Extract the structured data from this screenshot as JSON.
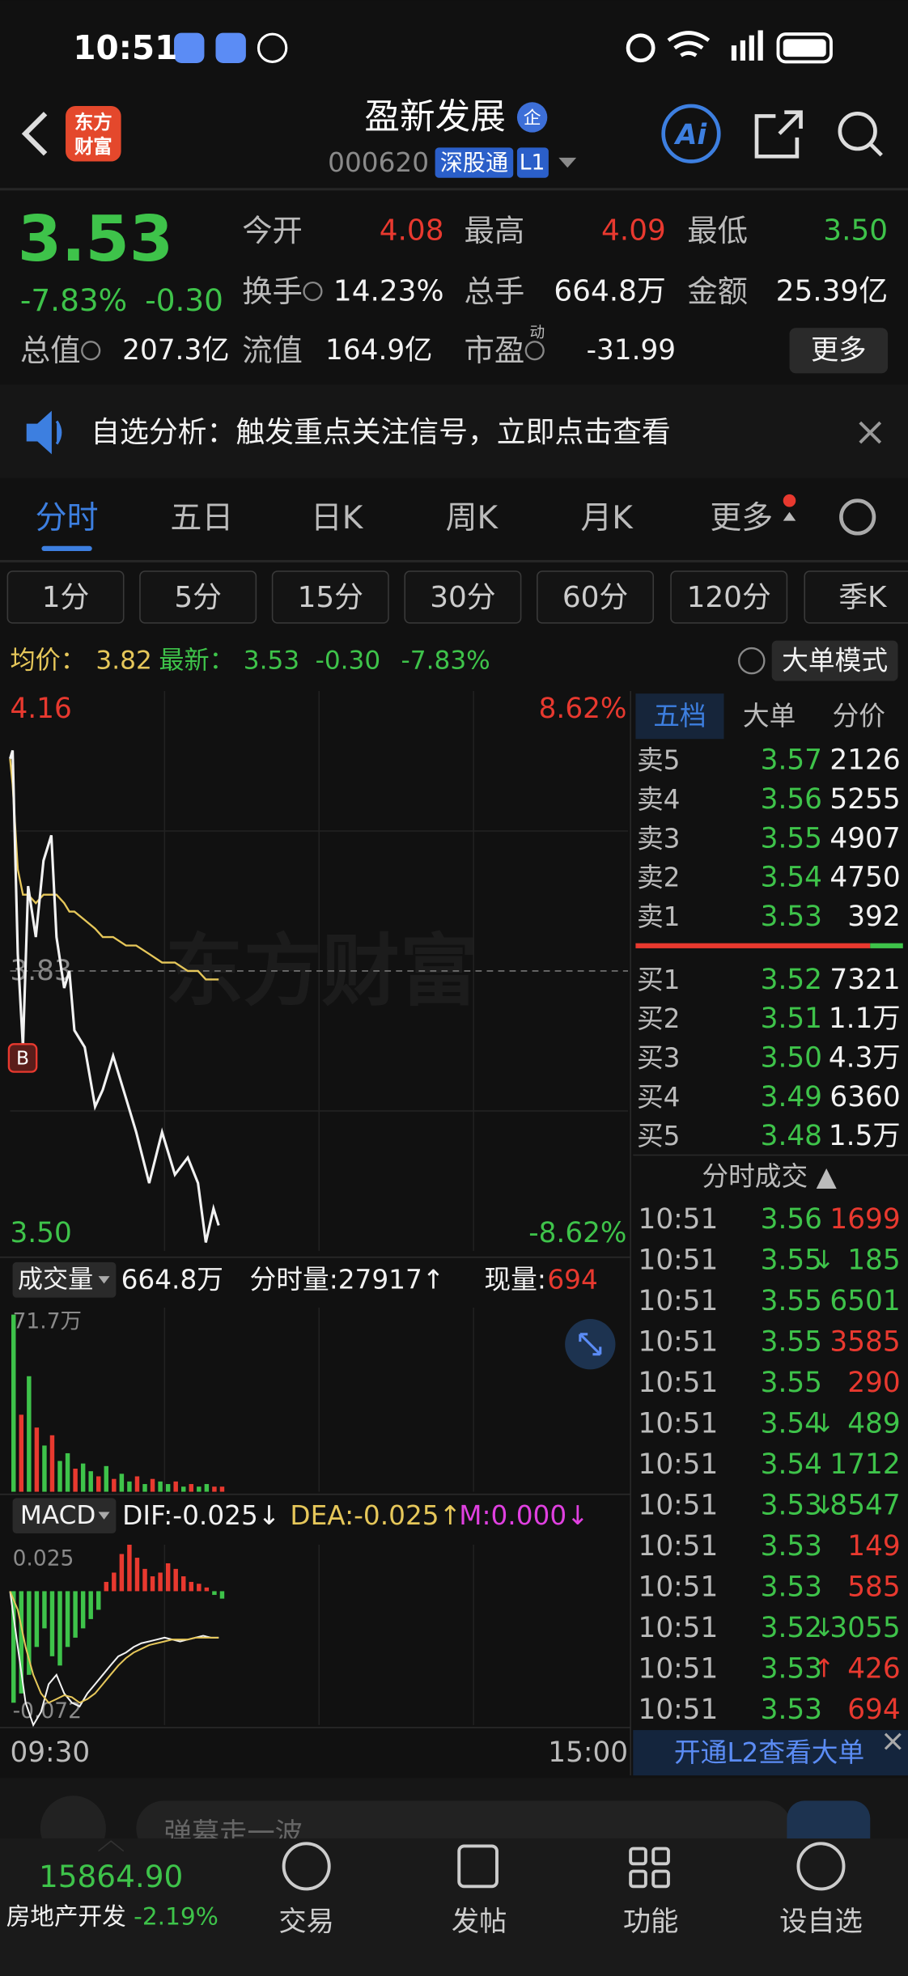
{
  "status_bar": {
    "time": "10:51"
  },
  "header": {
    "logo": [
      "东方",
      "财富"
    ],
    "title": "盈新发展",
    "badge": "企",
    "code": "000620",
    "tag": "深股通",
    "level": "L1",
    "ai": "Ai"
  },
  "quote": {
    "price": "3.53",
    "change_pct": "-7.83%",
    "change": "-0.30",
    "fields": [
      {
        "label": "今开",
        "value": "4.08"
      },
      {
        "label": "最高",
        "value": "4.09"
      },
      {
        "label": "最低",
        "value": "3.50"
      },
      {
        "label": "换手",
        "value": "14.23%"
      },
      {
        "label": "总手",
        "value": "664.8万"
      },
      {
        "label": "金额",
        "value": "25.39亿"
      },
      {
        "label": "总值",
        "value": "207.3亿"
      },
      {
        "label": "流值",
        "value": "164.9亿"
      },
      {
        "label": "市盈",
        "sup": "动",
        "value": "-31.99"
      }
    ],
    "more": "更多"
  },
  "notice": {
    "text": "自选分析：触发重点关注信号，立即点击查看"
  },
  "tabs": {
    "items": [
      "分时",
      "五日",
      "日K",
      "周K",
      "月K",
      "更多"
    ],
    "active": 0
  },
  "periods": [
    "1分",
    "5分",
    "15分",
    "30分",
    "60分",
    "120分",
    "季K"
  ],
  "summary": {
    "avg_label": "均价：",
    "avg": "3.82",
    "latest_label": "最新：",
    "latest": "3.53",
    "change": "-0.30",
    "change_pct": "-7.83%",
    "mode": "大单模式"
  },
  "volume_panel": {
    "label": "成交量",
    "total": "664.8万",
    "minute_volume": "分时量:27917↑",
    "current_label": "现量:",
    "current": "694"
  },
  "macd_panel": {
    "label": "MACD"
  },
  "chart_data": [
    {
      "type": "line",
      "watermark": "东方财富",
      "marker": "B",
      "x": [
        0,
        1,
        3,
        5,
        7,
        10,
        13,
        16,
        18,
        21,
        23,
        25,
        29,
        33,
        36,
        40,
        45,
        49,
        54,
        59,
        64,
        69,
        73,
        76,
        79,
        81
      ],
      "series": [
        {
          "color": "#f2f2f2",
          "values": [
            4.08,
            4.09,
            3.85,
            3.74,
            3.93,
            3.87,
            3.96,
            3.99,
            3.87,
            3.81,
            3.83,
            3.76,
            3.74,
            3.67,
            3.69,
            3.73,
            3.68,
            3.64,
            3.58,
            3.64,
            3.59,
            3.61,
            3.58,
            3.51,
            3.55,
            3.53
          ]
        },
        {
          "color": "#e6c75a",
          "values": [
            4.08,
            4.05,
            3.95,
            3.92,
            3.92,
            3.91,
            3.92,
            3.92,
            3.92,
            3.91,
            3.9,
            3.9,
            3.89,
            3.88,
            3.87,
            3.87,
            3.86,
            3.86,
            3.85,
            3.84,
            3.84,
            3.83,
            3.83,
            3.82,
            3.82,
            3.82
          ]
        }
      ],
      "xlim": [
        0,
        240
      ],
      "xticks": [
        {
          "value": 0,
          "label": "09:30"
        },
        {
          "value": 240,
          "label": "15:00"
        }
      ],
      "ylim": [
        3.5,
        4.16
      ],
      "yticks": [
        4.16,
        3.83,
        {
          "value": 3.5,
          "label": "3.50"
        }
      ],
      "y2lim": [
        -8.62,
        8.62
      ],
      "y2ticks": [
        {
          "value": 8.62,
          "label": "8.62%"
        },
        {
          "value": -8.62,
          "label": "-8.62%"
        }
      ]
    },
    {
      "type": "bar",
      "x": [
        0,
        3,
        6,
        9,
        12,
        15,
        18,
        21,
        24,
        27,
        30,
        33,
        36,
        39,
        42,
        45,
        48,
        51,
        54,
        57,
        60,
        63,
        66,
        69,
        72,
        75,
        78,
        81
      ],
      "values": [
        69,
        30,
        45,
        25,
        18,
        22,
        12,
        15,
        9,
        11,
        8,
        6,
        10,
        5,
        7,
        4,
        6,
        3,
        5,
        4,
        3,
        4,
        2,
        3,
        2,
        3,
        2,
        2
      ],
      "colors": [
        "#3ec34a",
        "#e8392f",
        "#3ec34a",
        "#e8392f",
        "#3ec34a",
        "#e8392f",
        "#3ec34a",
        "#3ec34a",
        "#e8392f",
        "#3ec34a",
        "#3ec34a",
        "#e8392f",
        "#3ec34a",
        "#e8392f",
        "#3ec34a",
        "#3ec34a",
        "#e8392f",
        "#3ec34a",
        "#e8392f",
        "#3ec34a",
        "#3ec34a",
        "#e8392f",
        "#3ec34a",
        "#e8392f",
        "#3ec34a",
        "#3ec34a",
        "#e8392f",
        "#e8392f"
      ],
      "xlim": [
        0,
        240
      ],
      "ylim": [
        0,
        71.7
      ],
      "yticks": [
        {
          "value": 71.7,
          "label": "71.7万"
        }
      ]
    },
    {
      "type": "macd",
      "x": [
        0,
        3,
        6,
        9,
        12,
        15,
        18,
        21,
        24,
        27,
        30,
        33,
        36,
        39,
        42,
        45,
        48,
        51,
        54,
        57,
        60,
        63,
        66,
        69,
        72,
        75,
        78,
        81
      ],
      "series": [
        {
          "name": "DIF:-0.025↓",
          "color": "#f2f2f2",
          "values": [
            0,
            -0.03,
            -0.06,
            -0.072,
            -0.065,
            -0.05,
            -0.045,
            -0.055,
            -0.06,
            -0.062,
            -0.055,
            -0.05,
            -0.045,
            -0.04,
            -0.035,
            -0.033,
            -0.03,
            -0.028,
            -0.027,
            -0.026,
            -0.025,
            -0.026,
            -0.027,
            -0.026,
            -0.025,
            -0.024,
            -0.025,
            -0.025
          ]
        },
        {
          "name": "DEA:-0.025↑",
          "color": "#e6c75a",
          "values": [
            0,
            -0.01,
            -0.03,
            -0.045,
            -0.055,
            -0.06,
            -0.058,
            -0.056,
            -0.057,
            -0.06,
            -0.058,
            -0.055,
            -0.05,
            -0.045,
            -0.04,
            -0.036,
            -0.033,
            -0.031,
            -0.029,
            -0.028,
            -0.027,
            -0.026,
            -0.026,
            -0.026,
            -0.025,
            -0.025,
            -0.025,
            -0.025
          ]
        },
        {
          "name": "M:0.000↓",
          "color": "#e040e0",
          "up_color": "#e8392f",
          "down_color": "#3ec34a",
          "values": [
            -0.06,
            -0.055,
            -0.045,
            -0.03,
            -0.02,
            -0.035,
            -0.04,
            -0.03,
            -0.025,
            -0.02,
            -0.015,
            -0.01,
            0.005,
            0.01,
            0.02,
            0.025,
            0.018,
            0.012,
            0.008,
            0.01,
            0.015,
            0.012,
            0.008,
            0.005,
            0.004,
            0.002,
            -0.002,
            -0.004
          ]
        }
      ],
      "xlim": [
        0,
        240
      ],
      "ylim": [
        -0.072,
        0.025
      ],
      "yticks": [
        0.025,
        -0.072
      ]
    }
  ],
  "order_book": {
    "tabs": [
      "五档",
      "大单",
      "分价"
    ],
    "asks": [
      {
        "label": "卖5",
        "price": "3.57",
        "volume": "2126"
      },
      {
        "label": "卖4",
        "price": "3.56",
        "volume": "5255"
      },
      {
        "label": "卖3",
        "price": "3.55",
        "volume": "4907"
      },
      {
        "label": "卖2",
        "price": "3.54",
        "volume": "4750"
      },
      {
        "label": "卖1",
        "price": "3.53",
        "volume": "392"
      }
    ],
    "bids": [
      {
        "label": "买1",
        "price": "3.52",
        "volume": "7321"
      },
      {
        "label": "买2",
        "price": "3.51",
        "volume": "1.1万"
      },
      {
        "label": "买3",
        "price": "3.50",
        "volume": "4.3万"
      },
      {
        "label": "买4",
        "price": "3.49",
        "volume": "6360"
      },
      {
        "label": "买5",
        "price": "3.48",
        "volume": "1.5万"
      }
    ]
  },
  "trades": {
    "title": "分时成交 ▲",
    "rows": [
      {
        "time": "10:51",
        "price": "3.56",
        "volume": "1699",
        "color": "red"
      },
      {
        "time": "10:51",
        "price": "3.55",
        "flag": "↓",
        "volume": "185",
        "color": "green"
      },
      {
        "time": "10:51",
        "price": "3.55",
        "volume": "6501",
        "color": "green"
      },
      {
        "time": "10:51",
        "price": "3.55",
        "volume": "3585",
        "color": "red"
      },
      {
        "time": "10:51",
        "price": "3.55",
        "volume": "290",
        "color": "red"
      },
      {
        "time": "10:51",
        "price": "3.54",
        "flag": "↓",
        "volume": "489",
        "color": "green"
      },
      {
        "time": "10:51",
        "price": "3.54",
        "volume": "1712",
        "color": "green"
      },
      {
        "time": "10:51",
        "price": "3.53",
        "flag": "↓",
        "volume": "8547",
        "color": "green"
      },
      {
        "time": "10:51",
        "price": "3.53",
        "volume": "149",
        "color": "red"
      },
      {
        "time": "10:51",
        "price": "3.53",
        "volume": "585",
        "color": "red"
      },
      {
        "time": "10:51",
        "price": "3.52",
        "flag": "↓",
        "volume": "3055",
        "color": "green"
      },
      {
        "time": "10:51",
        "price": "3.53",
        "flag": "↑",
        "volume": "426",
        "color": "red"
      },
      {
        "time": "10:51",
        "price": "3.53",
        "volume": "694",
        "color": "red"
      }
    ],
    "promo": "开通L2查看大单"
  },
  "comment_bar": {
    "placeholder": "弹幕走一波"
  },
  "bottom_nav": {
    "index_value": "15864.90",
    "sector": "房地产开发",
    "sector_change": "-2.19%",
    "items": [
      "交易",
      "发帖",
      "功能",
      "设自选"
    ]
  }
}
